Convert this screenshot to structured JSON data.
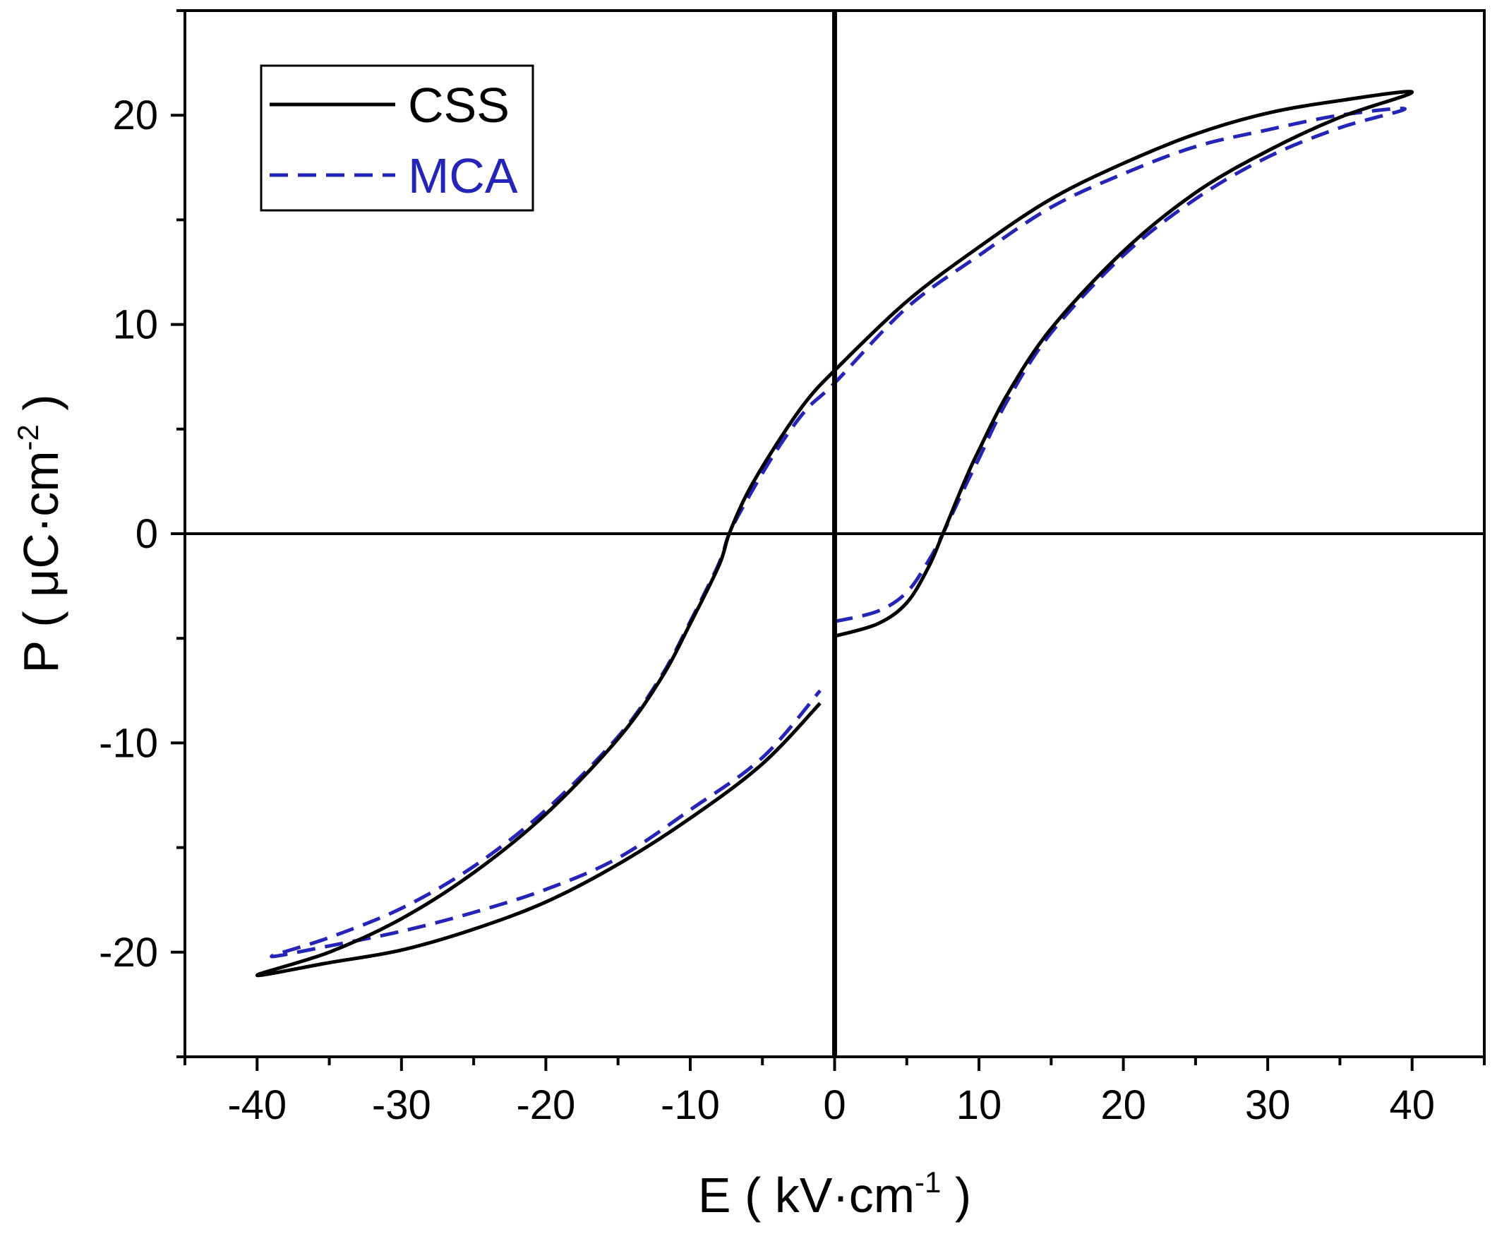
{
  "chart_data": {
    "type": "line",
    "title": "",
    "xlabel": {
      "main": "E ( kV·cm",
      "sup": "-1",
      "tail": " )"
    },
    "ylabel": {
      "main": "P ( μC·cm",
      "sup": "-2",
      "tail": " )"
    },
    "xlim": [
      -45,
      45
    ],
    "ylim": [
      -25,
      25
    ],
    "x_ticks": [
      -40,
      -30,
      -20,
      -10,
      0,
      10,
      20,
      30,
      40
    ],
    "x_tick_labels": [
      "-40",
      "-30",
      "-20",
      "-10",
      "0",
      "10",
      "20",
      "30",
      "40"
    ],
    "y_ticks": [
      -20,
      -10,
      0,
      10,
      20
    ],
    "y_tick_labels": [
      "-20",
      "-10",
      "0",
      "10",
      "20"
    ],
    "grid": false,
    "legend_position": "top-left",
    "series": [
      {
        "name": "CSS",
        "color": "#000000",
        "style": "solid",
        "points": [
          [
            0,
            -4.9
          ],
          [
            3,
            -4.3
          ],
          [
            5,
            -3.3
          ],
          [
            6.5,
            -1.6
          ],
          [
            7.5,
            0
          ],
          [
            9,
            2.5
          ],
          [
            10,
            4.0
          ],
          [
            12,
            6.7
          ],
          [
            15,
            9.8
          ],
          [
            20,
            13.5
          ],
          [
            25,
            16.3
          ],
          [
            30,
            18.3
          ],
          [
            35,
            19.9
          ],
          [
            40,
            21.1
          ],
          [
            35,
            20.7
          ],
          [
            30,
            20.1
          ],
          [
            25,
            19.1
          ],
          [
            20,
            17.7
          ],
          [
            15,
            16.0
          ],
          [
            10,
            13.7
          ],
          [
            5,
            11.1
          ],
          [
            0,
            7.8
          ],
          [
            -2,
            6.3
          ],
          [
            -4,
            4.3
          ],
          [
            -6,
            2.0
          ],
          [
            -7.3,
            0
          ],
          [
            -8,
            -1.5
          ],
          [
            -10,
            -4.3
          ],
          [
            -12,
            -6.9
          ],
          [
            -15,
            -9.8
          ],
          [
            -20,
            -13.4
          ],
          [
            -25,
            -16.2
          ],
          [
            -30,
            -18.4
          ],
          [
            -35,
            -20.0
          ],
          [
            -40,
            -21.1
          ],
          [
            -35,
            -20.5
          ],
          [
            -30,
            -19.9
          ],
          [
            -25,
            -18.9
          ],
          [
            -20,
            -17.6
          ],
          [
            -15,
            -15.8
          ],
          [
            -10,
            -13.6
          ],
          [
            -5,
            -11.0
          ],
          [
            -1,
            -8.1
          ]
        ]
      },
      {
        "name": "MCA",
        "color": "#2424b8",
        "style": "dashed",
        "points": [
          [
            0,
            -4.2
          ],
          [
            3,
            -3.7
          ],
          [
            5,
            -2.8
          ],
          [
            6.5,
            -1.3
          ],
          [
            7.5,
            0
          ],
          [
            9,
            2.2
          ],
          [
            10,
            3.6
          ],
          [
            12,
            6.4
          ],
          [
            15,
            9.6
          ],
          [
            20,
            13.3
          ],
          [
            25,
            16.0
          ],
          [
            30,
            18.0
          ],
          [
            35,
            19.4
          ],
          [
            39.5,
            20.3
          ],
          [
            35,
            20.0
          ],
          [
            30,
            19.3
          ],
          [
            25,
            18.5
          ],
          [
            20,
            17.2
          ],
          [
            15,
            15.6
          ],
          [
            10,
            13.3
          ],
          [
            5,
            10.8
          ],
          [
            0,
            7.2
          ],
          [
            -2,
            5.9
          ],
          [
            -4,
            4.0
          ],
          [
            -6,
            1.7
          ],
          [
            -7.3,
            0
          ],
          [
            -8,
            -1.4
          ],
          [
            -10,
            -4.2
          ],
          [
            -12,
            -6.8
          ],
          [
            -15,
            -9.7
          ],
          [
            -20,
            -13.2
          ],
          [
            -25,
            -15.9
          ],
          [
            -30,
            -17.9
          ],
          [
            -35,
            -19.3
          ],
          [
            -39,
            -20.2
          ],
          [
            -35,
            -19.7
          ],
          [
            -30,
            -19.0
          ],
          [
            -25,
            -18.1
          ],
          [
            -20,
            -17.0
          ],
          [
            -15,
            -15.5
          ],
          [
            -10,
            -13.2
          ],
          [
            -5,
            -10.7
          ],
          [
            -1,
            -7.5
          ]
        ]
      }
    ]
  }
}
